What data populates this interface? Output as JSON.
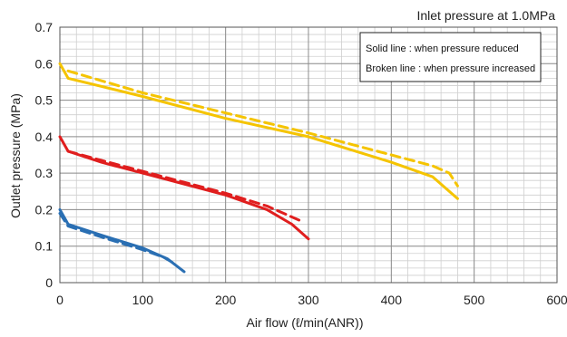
{
  "chart_data": {
    "type": "line",
    "annotation": "Inlet pressure at 1.0MPa",
    "xlabel": "Air flow (ℓ/min(ANR))",
    "ylabel": "Outlet pressure (MPa)",
    "xlim": [
      0,
      600
    ],
    "ylim": [
      0,
      0.7
    ],
    "x_ticks": [
      "0",
      "100",
      "200",
      "300",
      "400",
      "500",
      "600"
    ],
    "y_ticks": [
      "0",
      "0.1",
      "0.2",
      "0.3",
      "0.4",
      "0.5",
      "0.6",
      "0.7"
    ],
    "x_minor_step": 20,
    "y_minor_step": 0.02,
    "grid": true,
    "legend": {
      "placement": "top-right",
      "lines": [
        "Solid line : when pressure reduced",
        "Broken line : when pressure increased"
      ]
    },
    "series": [
      {
        "style": "solid",
        "color": "#f5c400",
        "points": [
          [
            0,
            0.6
          ],
          [
            10,
            0.56
          ],
          [
            100,
            0.51
          ],
          [
            200,
            0.45
          ],
          [
            300,
            0.4
          ],
          [
            400,
            0.33
          ],
          [
            450,
            0.29
          ],
          [
            480,
            0.23
          ]
        ]
      },
      {
        "style": "dashed",
        "color": "#f5c400",
        "points": [
          [
            10,
            0.58
          ],
          [
            100,
            0.52
          ],
          [
            200,
            0.465
          ],
          [
            300,
            0.41
          ],
          [
            400,
            0.35
          ],
          [
            450,
            0.32
          ],
          [
            470,
            0.3
          ],
          [
            480,
            0.265
          ]
        ]
      },
      {
        "style": "solid",
        "color": "#e01e1e",
        "points": [
          [
            0,
            0.4
          ],
          [
            10,
            0.36
          ],
          [
            50,
            0.33
          ],
          [
            100,
            0.3
          ],
          [
            150,
            0.27
          ],
          [
            200,
            0.24
          ],
          [
            250,
            0.2
          ],
          [
            280,
            0.16
          ],
          [
            300,
            0.12
          ]
        ]
      },
      {
        "style": "dashed",
        "color": "#e01e1e",
        "points": [
          [
            10,
            0.36
          ],
          [
            50,
            0.335
          ],
          [
            100,
            0.305
          ],
          [
            150,
            0.275
          ],
          [
            200,
            0.245
          ],
          [
            250,
            0.21
          ],
          [
            280,
            0.18
          ],
          [
            290,
            0.17
          ]
        ]
      },
      {
        "style": "solid",
        "color": "#2a6fb3",
        "points": [
          [
            0,
            0.2
          ],
          [
            10,
            0.16
          ],
          [
            50,
            0.13
          ],
          [
            100,
            0.095
          ],
          [
            130,
            0.065
          ],
          [
            150,
            0.03
          ]
        ]
      },
      {
        "style": "dashed",
        "color": "#2a6fb3",
        "points": [
          [
            0,
            0.19
          ],
          [
            10,
            0.155
          ],
          [
            50,
            0.125
          ],
          [
            100,
            0.09
          ],
          [
            125,
            0.07
          ],
          [
            140,
            0.05
          ]
        ]
      }
    ]
  }
}
